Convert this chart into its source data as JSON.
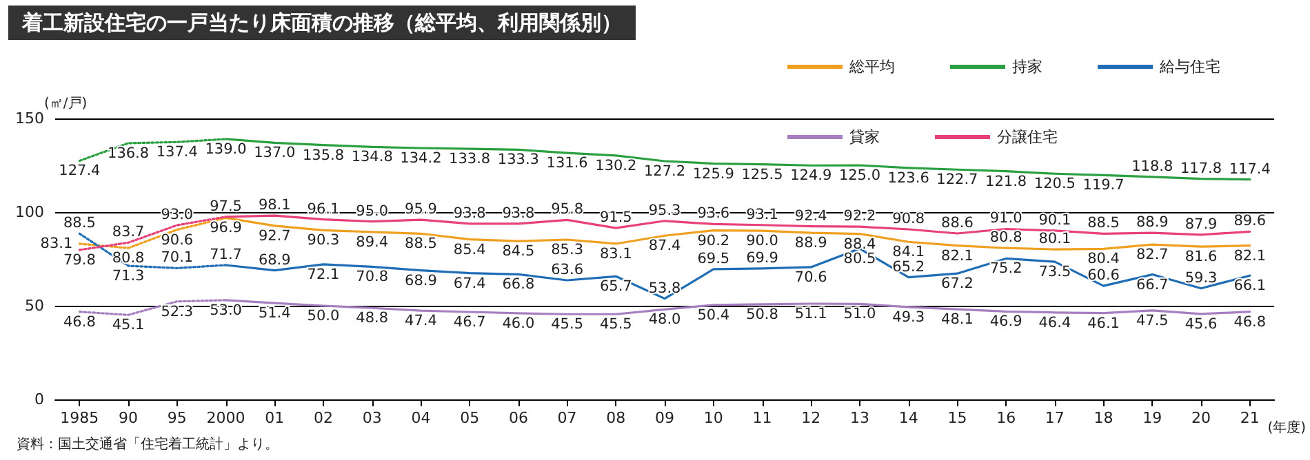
{
  "chart_data": {
    "type": "line",
    "title": "着工新設住宅の一戸当たり床面積の推移（総平均、利用関係別）",
    "xlabel": "(年度)",
    "ylabel": "(㎡/戸)",
    "categories": [
      "1985",
      "90",
      "95",
      "2000",
      "01",
      "02",
      "03",
      "04",
      "05",
      "06",
      "07",
      "08",
      "09",
      "10",
      "11",
      "12",
      "13",
      "14",
      "15",
      "16",
      "17",
      "18",
      "19",
      "20",
      "21"
    ],
    "series": [
      {
        "name": "総平均",
        "color": "#f0a020",
        "line_style": "solid",
        "values": [
          null,
          null,
          null,
          96.9,
          92.7,
          90.3,
          89.4,
          88.5,
          85.4,
          84.5,
          85.3,
          83.1,
          87.4,
          90.2,
          90.0,
          88.9,
          88.4,
          84.1,
          82.1,
          80.8,
          80.1,
          80.4,
          82.7,
          81.6,
          82.1
        ],
        "value_labels": [
          null,
          null,
          null,
          "96.9",
          "92.7",
          "90.3",
          "89.4",
          "88.5",
          "85.4",
          "84.5",
          "85.3",
          "83.1",
          "87.4",
          "90.2",
          "90.0",
          "88.9",
          "88.4",
          "84.1",
          "82.1",
          "80.8",
          "80.1",
          "80.4",
          "82.7",
          "81.6",
          "82.1"
        ]
      },
      {
        "name": "持家",
        "color": "#2aa040",
        "line_style": "solid",
        "values": [
          null,
          null,
          null,
          139.0,
          137.0,
          135.8,
          134.8,
          134.2,
          133.8,
          133.3,
          131.6,
          130.2,
          127.2,
          125.9,
          125.5,
          124.9,
          125.0,
          123.6,
          122.7,
          121.8,
          120.5,
          119.7,
          118.8,
          117.8,
          117.4
        ],
        "value_labels": [
          null,
          null,
          null,
          "139.0",
          "137.0",
          "135.8",
          "134.8",
          "134.2",
          "133.8",
          "133.3",
          "131.6",
          "130.2",
          "127.2",
          "125.9",
          "125.5",
          "124.9",
          "125.0",
          "123.6",
          "122.7",
          "121.8",
          "120.5",
          "119.7",
          "118.8",
          "117.8",
          "117.4"
        ]
      },
      {
        "name": "給与住宅",
        "color": "#1f6db5",
        "line_style": "solid",
        "values": [
          null,
          null,
          null,
          71.7,
          68.9,
          72.1,
          70.8,
          68.9,
          67.4,
          66.8,
          63.6,
          65.7,
          53.8,
          69.5,
          69.9,
          70.6,
          80.5,
          65.2,
          67.2,
          75.2,
          73.5,
          60.6,
          66.7,
          59.3,
          66.1
        ],
        "value_labels": [
          null,
          null,
          null,
          "71.7",
          "68.9",
          "72.1",
          "70.8",
          "68.9",
          "67.4",
          "66.8",
          "63.6",
          "65.7",
          "53.8",
          "69.5",
          "69.9",
          "70.6",
          "80.5",
          "65.2",
          "67.2",
          "75.2",
          "73.5",
          "60.6",
          "66.7",
          "59.3",
          "66.1"
        ]
      },
      {
        "name": "貸家",
        "color": "#a77fc0",
        "line_style": "solid",
        "values": [
          null,
          null,
          null,
          53.0,
          51.4,
          50.0,
          48.8,
          47.4,
          46.7,
          46.0,
          45.5,
          45.5,
          48.0,
          50.4,
          50.8,
          51.1,
          51.0,
          49.3,
          48.1,
          46.9,
          46.4,
          46.1,
          47.5,
          45.6,
          46.8
        ],
        "value_labels": [
          null,
          null,
          null,
          "53.0",
          "51.4",
          "50.0",
          "48.8",
          "47.4",
          "46.7",
          "46.0",
          "45.5",
          "45.5",
          "48.0",
          "50.4",
          "50.8",
          "51.1",
          "51.0",
          "49.3",
          "48.1",
          "46.9",
          "46.4",
          "46.1",
          "47.5",
          "45.6",
          "46.8"
        ]
      },
      {
        "name": "分譲住宅",
        "color": "#e8407a",
        "line_style": "solid",
        "values": [
          null,
          null,
          null,
          97.5,
          98.1,
          96.1,
          95.0,
          95.9,
          93.8,
          93.8,
          95.8,
          91.5,
          95.3,
          93.6,
          93.1,
          92.4,
          92.2,
          90.8,
          88.6,
          91.0,
          90.1,
          88.5,
          88.9,
          87.9,
          89.6
        ],
        "value_labels": [
          null,
          null,
          null,
          "97.5",
          "98.1",
          "96.1",
          "95.0",
          "95.9",
          "93.8",
          "93.8",
          "95.8",
          "91.5",
          "95.3",
          "93.6",
          "93.1",
          "92.4",
          "92.2",
          "90.8",
          "88.6",
          "91.0",
          "90.1",
          "88.5",
          "88.9",
          "87.9",
          "89.6"
        ]
      },
      {
        "color": "#f0a020",
        "line_style": "dotted",
        "values": [
          83.1,
          80.8,
          90.6,
          96.9,
          null,
          null,
          null,
          null,
          null,
          null,
          null,
          null,
          null,
          null,
          null,
          null,
          null,
          null,
          null,
          null,
          null,
          null,
          null,
          null,
          null
        ],
        "value_labels": [
          "83.1",
          "80.8",
          "90.6",
          null,
          null,
          null,
          null,
          null,
          null,
          null,
          null,
          null,
          null,
          null,
          null,
          null,
          null,
          null,
          null,
          null,
          null,
          null,
          null,
          null,
          null
        ]
      },
      {
        "color": "#2aa040",
        "line_style": "dotted",
        "values": [
          127.4,
          136.8,
          137.4,
          139.0,
          null,
          null,
          null,
          null,
          null,
          null,
          null,
          null,
          null,
          null,
          null,
          null,
          null,
          null,
          null,
          null,
          null,
          null,
          null,
          null,
          null
        ],
        "value_labels": [
          "127.4",
          "136.8",
          "137.4",
          null,
          null,
          null,
          null,
          null,
          null,
          null,
          null,
          null,
          null,
          null,
          null,
          null,
          null,
          null,
          null,
          null,
          null,
          null,
          null,
          null,
          null
        ]
      },
      {
        "color": "#1f6db5",
        "line_style": "dotted",
        "values": [
          88.5,
          71.3,
          70.1,
          71.7,
          null,
          null,
          null,
          null,
          null,
          null,
          null,
          null,
          null,
          null,
          null,
          null,
          null,
          null,
          null,
          null,
          null,
          null,
          null,
          null,
          null
        ],
        "value_labels": [
          "88.5",
          "71.3",
          "70.1",
          null,
          null,
          null,
          null,
          null,
          null,
          null,
          null,
          null,
          null,
          null,
          null,
          null,
          null,
          null,
          null,
          null,
          null,
          null,
          null,
          null,
          null
        ]
      },
      {
        "color": "#a77fc0",
        "line_style": "dotted",
        "values": [
          46.8,
          45.1,
          52.3,
          53.0,
          null,
          null,
          null,
          null,
          null,
          null,
          null,
          null,
          null,
          null,
          null,
          null,
          null,
          null,
          null,
          null,
          null,
          null,
          null,
          null,
          null
        ],
        "value_labels": [
          "46.8",
          "45.1",
          "52.3",
          null,
          null,
          null,
          null,
          null,
          null,
          null,
          null,
          null,
          null,
          null,
          null,
          null,
          null,
          null,
          null,
          null,
          null,
          null,
          null,
          null,
          null
        ]
      },
      {
        "color": "#e8407a",
        "line_style": "dotted",
        "values": [
          79.8,
          83.7,
          93.0,
          97.5,
          null,
          null,
          null,
          null,
          null,
          null,
          null,
          null,
          null,
          null,
          null,
          null,
          null,
          null,
          null,
          null,
          null,
          null,
          null,
          null,
          null
        ],
        "value_labels": [
          "79.8",
          "83.7",
          "93.0",
          null,
          null,
          null,
          null,
          null,
          null,
          null,
          null,
          null,
          null,
          null,
          null,
          null,
          null,
          null,
          null,
          null,
          null,
          null,
          null,
          null,
          null
        ]
      }
    ],
    "ylim": [
      0,
      150
    ],
    "yticks": [
      0,
      50,
      100,
      150
    ],
    "grid": "y",
    "legend": "top right",
    "marker": "none",
    "data_labels": true,
    "annotations": [
      "資料：国土交通省「住宅着工統計」より。"
    ]
  }
}
